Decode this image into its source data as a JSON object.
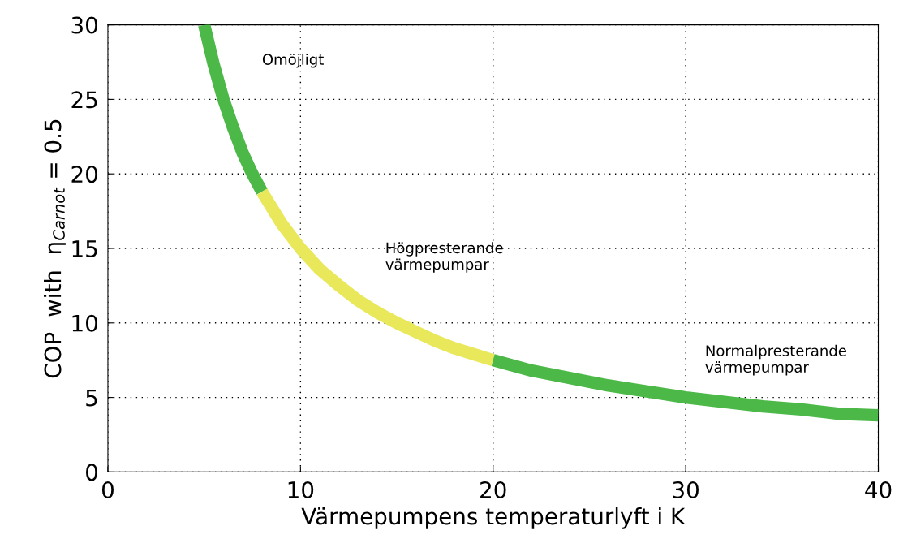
{
  "chart_data": {
    "type": "line",
    "xlabel": "Värmepumpens temperaturlyft i K",
    "ylabel": "COP  with  η$_{Carnot}$ = 0.5",
    "xlim": [
      0,
      40
    ],
    "xticks": [
      0,
      10,
      20,
      30,
      40
    ],
    "ylim": [
      0,
      30
    ],
    "yticks": [
      0,
      5,
      10,
      15,
      20,
      25,
      30
    ],
    "grid": true,
    "line_style": "solid",
    "marker": "none",
    "series": [
      {
        "color": "#4cb848",
        "x": [
          5,
          5.5,
          6,
          6.5,
          7,
          7.5,
          8
        ],
        "values": [
          30,
          27.3,
          25,
          23.1,
          21.4,
          20,
          18.8
        ]
      },
      {
        "color": "#e8e85a",
        "x": [
          8,
          9,
          10,
          11,
          12,
          13,
          14,
          15,
          16,
          17,
          18,
          19,
          20
        ],
        "values": [
          18.8,
          16.7,
          15,
          13.6,
          12.5,
          11.5,
          10.7,
          10,
          9.4,
          8.8,
          8.3,
          7.9,
          7.5
        ]
      },
      {
        "color": "#4cb848",
        "x": [
          20,
          22,
          24,
          26,
          28,
          30,
          32,
          34,
          36,
          38,
          40
        ],
        "values": [
          7.5,
          6.8,
          6.3,
          5.8,
          5.4,
          5,
          4.7,
          4.4,
          4.2,
          3.9,
          3.8
        ]
      }
    ],
    "annotations": [
      "Omöjligt",
      "Högpresterande\nvärmepumpar",
      "Normalpresterande\nvärmepumpar"
    ]
  }
}
